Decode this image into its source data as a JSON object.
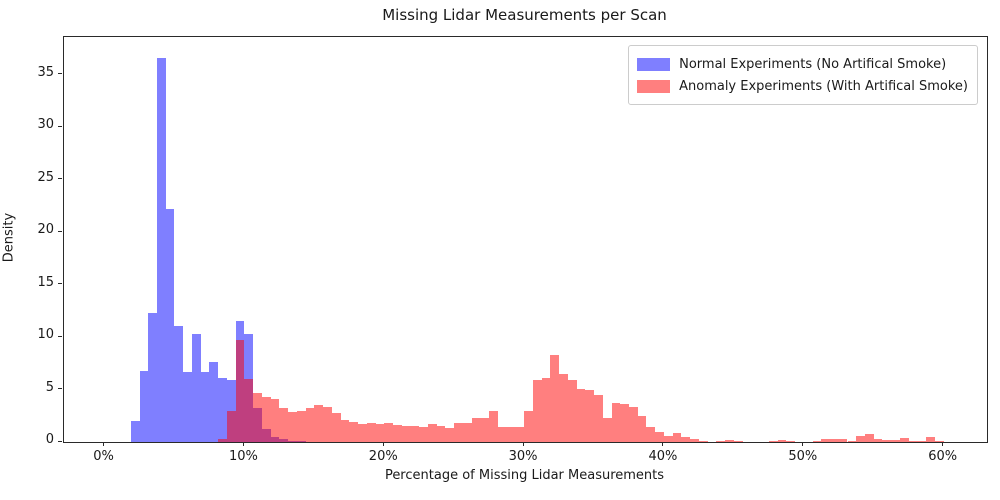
{
  "title": "Missing Lidar Measurements per Scan",
  "chart_data": {
    "type": "bar",
    "subtype": "histogram",
    "title": "Missing Lidar Measurements per Scan",
    "xlabel": "Percentage of Missing Lidar Measurements",
    "ylabel": "Density",
    "x_ticks": [
      {
        "value": 0,
        "label": "0%"
      },
      {
        "value": 10,
        "label": "10%"
      },
      {
        "value": 20,
        "label": "20%"
      },
      {
        "value": 30,
        "label": "30%"
      },
      {
        "value": 40,
        "label": "40%"
      },
      {
        "value": 50,
        "label": "50%"
      },
      {
        "value": 60,
        "label": "60%"
      }
    ],
    "y_ticks": [
      {
        "value": 0,
        "label": "0"
      },
      {
        "value": 5,
        "label": "5"
      },
      {
        "value": 10,
        "label": "10"
      },
      {
        "value": 15,
        "label": "15"
      },
      {
        "value": 20,
        "label": "20"
      },
      {
        "value": 25,
        "label": "25"
      },
      {
        "value": 30,
        "label": "30"
      },
      {
        "value": 35,
        "label": "35"
      }
    ],
    "xlim": [
      -2.9,
      63.1
    ],
    "ylim": [
      0,
      38.6
    ],
    "grid": false,
    "legend_position": "upper right",
    "bin_width_percent": 0.625,
    "series": [
      {
        "name": "Normal Experiments (No Artifical Smoke)",
        "color": "rgba(0,0,255,0.5)",
        "solid_color": "#8080ff",
        "bin_start_percent": 1.875,
        "densities": [
          2.0,
          6.8,
          12.3,
          36.6,
          22.2,
          11.1,
          6.7,
          10.3,
          6.7,
          7.6,
          6.1,
          5.9,
          11.5,
          10.3,
          3.2,
          1.2,
          0.5,
          0.25,
          0.1,
          0.05
        ]
      },
      {
        "name": "Anomaly Experiments (With Artifical Smoke)",
        "color": "rgba(255,0,0,0.5)",
        "solid_color": "#ff8080",
        "bin_start_percent": 8.125,
        "densities": [
          0.3,
          3.0,
          9.7,
          6.0,
          4.7,
          4.3,
          4.1,
          3.2,
          2.9,
          3.0,
          3.2,
          3.5,
          3.3,
          2.8,
          2.1,
          1.9,
          1.7,
          1.8,
          1.75,
          1.85,
          1.6,
          1.5,
          1.55,
          1.4,
          1.75,
          1.55,
          1.3,
          1.85,
          1.85,
          2.25,
          2.25,
          3.0,
          1.45,
          1.4,
          1.45,
          3.0,
          5.9,
          6.1,
          8.3,
          6.5,
          5.9,
          5.1,
          5.0,
          4.5,
          2.3,
          3.7,
          3.6,
          3.3,
          2.5,
          1.45,
          0.95,
          0.6,
          0.9,
          0.45,
          0.25,
          0.05,
          0.0,
          0.1,
          0.2,
          0.1,
          0.0,
          0.0,
          0.0,
          0.1,
          0.2,
          0.05,
          0.0,
          0.0,
          0.1,
          0.25,
          0.3,
          0.25,
          0.1,
          0.6,
          0.75,
          0.3,
          0.2,
          0.2,
          0.35,
          0.1,
          0.05,
          0.45,
          0.1
        ]
      }
    ]
  },
  "legend": {
    "items": [
      {
        "label": "Normal Experiments (No Artifical Smoke)"
      },
      {
        "label": "Anomaly Experiments (With Artifical Smoke)"
      }
    ]
  }
}
